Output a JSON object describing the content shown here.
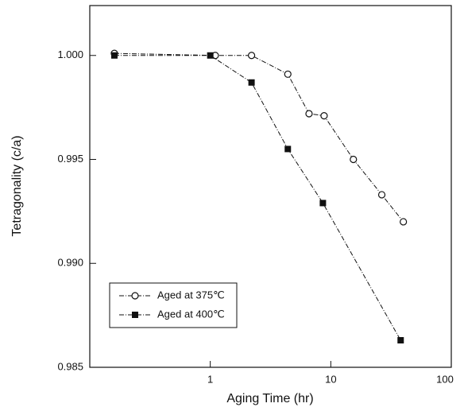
{
  "chart_data": {
    "type": "line",
    "x_label": "Aging Time (hr)",
    "y_label": "Tetragonality (c/a)",
    "xscale": "log",
    "xlim": [
      0.1,
      100
    ],
    "xticks": [
      1,
      10,
      100
    ],
    "ylim": [
      0.985,
      1.0024
    ],
    "yticks": [
      {
        "value": 0.985,
        "label": "0.985"
      },
      {
        "value": 0.99,
        "label": "0.990"
      },
      {
        "value": 0.995,
        "label": "0.995"
      },
      {
        "value": 1,
        "label": "1.000"
      }
    ],
    "legend": "lower left",
    "series": [
      {
        "name": "Aged at 375℃",
        "marker": "open-circle",
        "color": "#111111",
        "x": [
          0.16,
          1.1,
          2.2,
          4.4,
          6.6,
          8.8,
          15.4,
          26.5,
          40
        ],
        "values": [
          1.0001,
          1.0,
          1.0,
          0.9991,
          0.9972,
          0.9971,
          0.995,
          0.9933,
          0.992
        ]
      },
      {
        "name": "Aged at 400℃",
        "marker": "filled-square",
        "color": "#111111",
        "x": [
          0.16,
          1.0,
          2.2,
          4.4,
          8.6,
          38
        ],
        "values": [
          1.0,
          1.0,
          0.9987,
          0.9955,
          0.9929,
          0.9863
        ]
      }
    ]
  }
}
